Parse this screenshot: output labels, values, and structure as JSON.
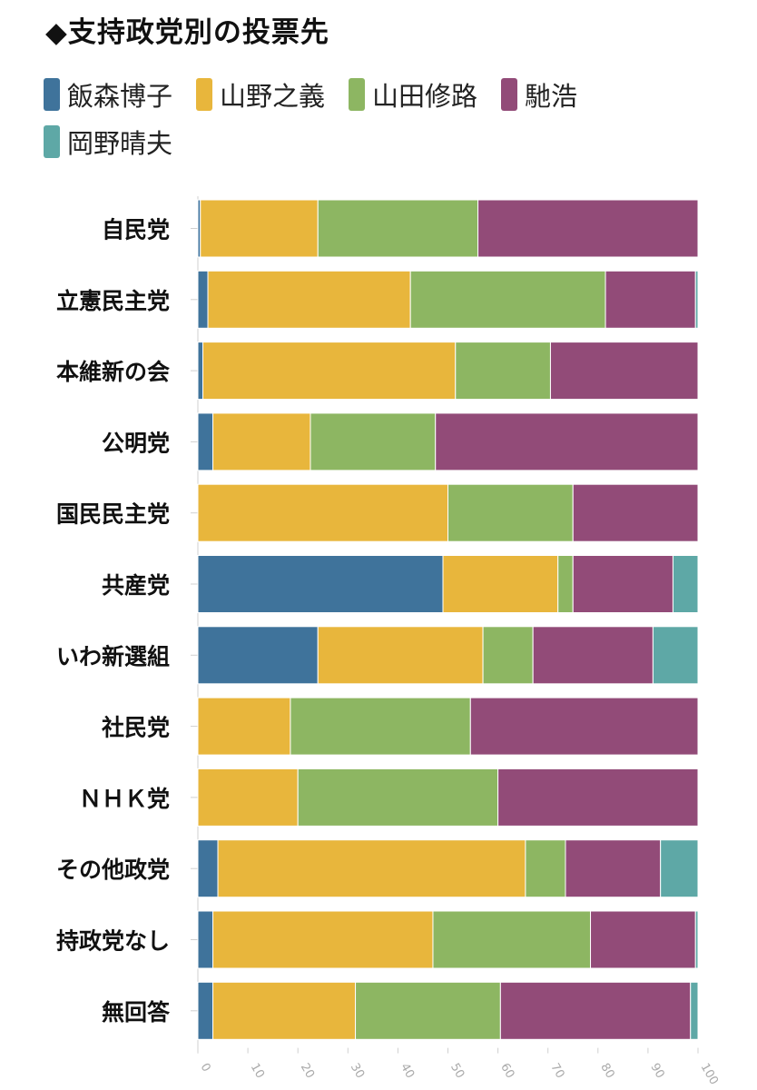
{
  "chart_data": {
    "type": "bar",
    "orientation": "horizontal",
    "stacked": true,
    "title": "◆支持政党別の投票先",
    "categories": [
      "自民党",
      "立憲民主党",
      "本維新の会",
      "公明党",
      "国民民主党",
      "共産党",
      "いわ新選組",
      "社民党",
      "ＮＨＫ党",
      "その他政党",
      "持政党なし",
      "無回答"
    ],
    "series": [
      {
        "name": "飯森博子",
        "color": "#3f739b",
        "values": [
          0.5,
          2,
          1,
          3,
          0,
          49,
          24,
          0,
          0,
          4,
          3,
          3
        ]
      },
      {
        "name": "山野之義",
        "color": "#e8b63c",
        "values": [
          23.5,
          40.5,
          50.5,
          19.5,
          50,
          23,
          33,
          18.5,
          20,
          61.5,
          44,
          28.5
        ]
      },
      {
        "name": "山田修路",
        "color": "#8db662",
        "values": [
          32,
          39,
          19,
          25,
          25,
          3,
          10,
          36,
          40,
          8,
          31.5,
          29
        ]
      },
      {
        "name": "馳浩",
        "color": "#924b78",
        "values": [
          44,
          18,
          29.5,
          52.5,
          25,
          20,
          24,
          45.5,
          40,
          19,
          21,
          38
        ]
      },
      {
        "name": "岡野晴夫",
        "color": "#5ea8a6",
        "values": [
          0,
          0.5,
          0,
          0,
          0,
          5,
          9,
          0,
          0,
          7.5,
          0.5,
          1.5
        ]
      }
    ],
    "xlim": [
      0,
      100
    ],
    "xticks": [
      0,
      10,
      20,
      30,
      40,
      50,
      60,
      70,
      80,
      90,
      100
    ],
    "legend_position": "top-left"
  }
}
